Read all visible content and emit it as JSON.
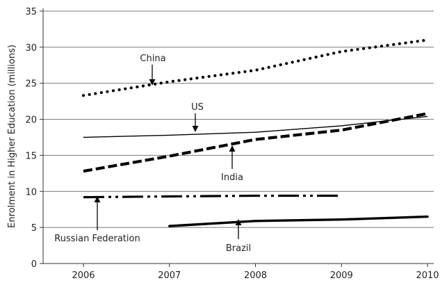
{
  "chart_data": {
    "type": "line",
    "title": "",
    "xlabel": "",
    "ylabel": "Enrolment in Higher Education (millions)",
    "categories": [
      "2006",
      "2007",
      "2008",
      "2009",
      "2010"
    ],
    "ylim": [
      0,
      35
    ],
    "yticks": [
      0,
      5,
      10,
      15,
      20,
      25,
      30,
      35
    ],
    "grid": "horizontal",
    "legend": "none (inline annotations with arrows)",
    "series": [
      {
        "name": "China",
        "style": "dotted",
        "x": [
          2006,
          2007,
          2008,
          2009,
          2010
        ],
        "values": [
          23.3,
          25.2,
          26.8,
          29.4,
          31.0
        ]
      },
      {
        "name": "US",
        "style": "solid-thin",
        "x": [
          2006,
          2007,
          2008,
          2009,
          2010
        ],
        "values": [
          17.5,
          17.8,
          18.2,
          19.1,
          20.4
        ]
      },
      {
        "name": "India",
        "style": "dashed",
        "x": [
          2006,
          2007,
          2008,
          2009,
          2010
        ],
        "values": [
          12.8,
          14.9,
          17.2,
          18.5,
          20.8
        ]
      },
      {
        "name": "Russian Federation",
        "style": "dash-dot-dot",
        "x": [
          2006,
          2007,
          2008,
          2009
        ],
        "values": [
          9.2,
          9.3,
          9.4,
          9.4
        ]
      },
      {
        "name": "Brazil",
        "style": "solid-thick",
        "x": [
          2007,
          2008,
          2009,
          2010
        ],
        "values": [
          5.2,
          5.9,
          6.1,
          6.5
        ]
      }
    ],
    "annotations": [
      {
        "text": "China",
        "series": "China"
      },
      {
        "text": "US",
        "series": "US"
      },
      {
        "text": "India",
        "series": "India"
      },
      {
        "text": "Russian Federation",
        "series": "Russian Federation"
      },
      {
        "text": "Brazil",
        "series": "Brazil"
      }
    ]
  }
}
